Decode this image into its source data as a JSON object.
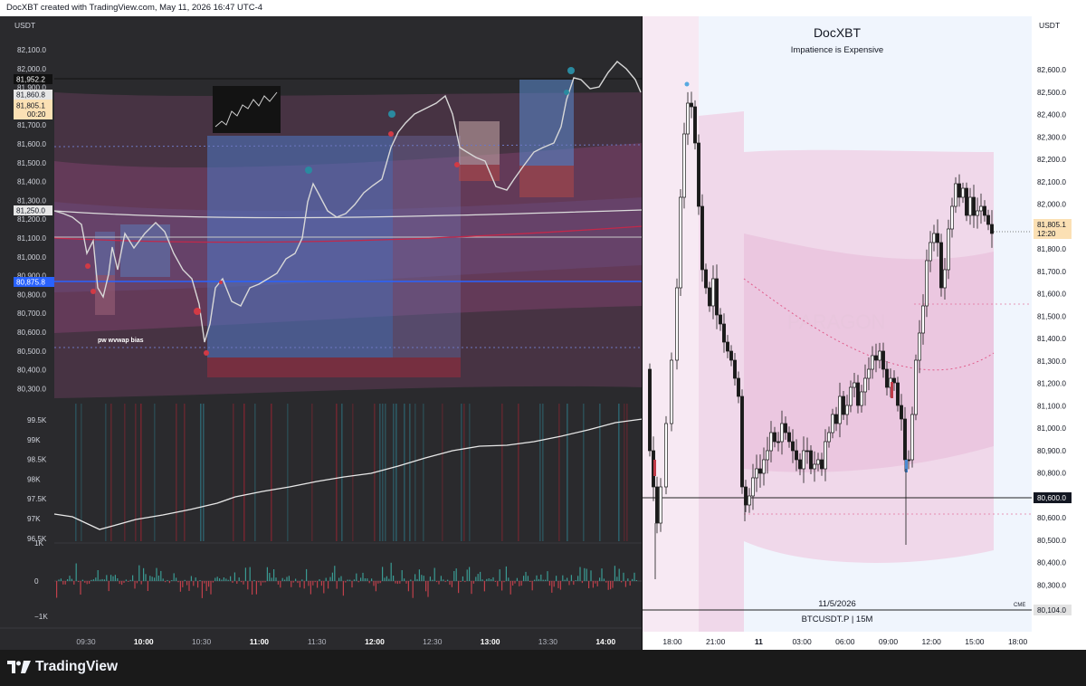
{
  "header": {
    "attribution": "DocXBT created with TradingView.com, May 11, 2026 16:47 UTC-4"
  },
  "left_chart": {
    "currency": "USDT",
    "price_axis": [
      "82,100.0",
      "82,000.0",
      "81,900.0",
      "81,800.0",
      "81,700.0",
      "81,600.0",
      "81,500.0",
      "81,400.0",
      "81,300.0",
      "81,200.0",
      "81,100.0",
      "81,000.0",
      "80,900.0",
      "80,800.0",
      "80,700.0",
      "80,600.0",
      "80,500.0",
      "80,400.0",
      "80,300.0"
    ],
    "price_labels": {
      "level_top": "81,952.2",
      "mid_box": "81,860.8",
      "last_price": "81,805.1",
      "countdown": "00:20",
      "gray_level": "81,250.0",
      "blue_level": "80,875.8"
    },
    "annotation": "pw wvwap bias",
    "indicator_axis": [
      "99.5K",
      "99K",
      "98.5K",
      "98K",
      "97.5K",
      "97K",
      "96.5K"
    ],
    "delta_axis": [
      "1K",
      "0",
      "−1K"
    ],
    "time_axis": [
      {
        "label": "09:30",
        "bold": false
      },
      {
        "label": "10:00",
        "bold": true
      },
      {
        "label": "10:30",
        "bold": false
      },
      {
        "label": "11:00",
        "bold": true
      },
      {
        "label": "11:30",
        "bold": false
      },
      {
        "label": "12:00",
        "bold": true
      },
      {
        "label": "12:30",
        "bold": false
      },
      {
        "label": "13:00",
        "bold": true
      },
      {
        "label": "13:30",
        "bold": false
      },
      {
        "label": "14:00",
        "bold": true
      }
    ]
  },
  "right_chart": {
    "title": "DocXBT",
    "subtitle": "Impatience is Expensive",
    "watermark": "PARAGON",
    "currency": "USDT",
    "price_axis": [
      "82,600.0",
      "82,500.0",
      "82,400.0",
      "82,300.0",
      "82,200.0",
      "82,100.0",
      "82,000.0",
      "81,900.0",
      "81,800.0",
      "81,700.0",
      "81,600.0",
      "81,500.0",
      "81,400.0",
      "81,300.0",
      "81,200.0",
      "81,100.0",
      "81,000.0",
      "80,900.0",
      "80,800.0",
      "80,700.0",
      "80,600.0",
      "80,500.0",
      "80,400.0",
      "80,300.0",
      "80,200.0"
    ],
    "price_labels": {
      "last_price": "81,805.1",
      "countdown": "12:20",
      "level": "80,600.0",
      "bottom": "80,104.0",
      "exchange": "CME"
    },
    "date": "11/5/2026",
    "symbol": "BTCUSDT.P | 15M",
    "time_axis": [
      {
        "label": "18:00",
        "bold": false
      },
      {
        "label": "21:00",
        "bold": false
      },
      {
        "label": "11",
        "bold": true
      },
      {
        "label": "03:00",
        "bold": false
      },
      {
        "label": "06:00",
        "bold": false
      },
      {
        "label": "09:00",
        "bold": false
      },
      {
        "label": "12:00",
        "bold": false
      },
      {
        "label": "15:00",
        "bold": false
      },
      {
        "label": "18:00",
        "bold": false
      }
    ]
  },
  "footer": {
    "brand": "TradingView",
    "logo_icon": "tradingview-logo-icon"
  },
  "colors": {
    "left_bg": "#2a2a2d",
    "right_bg": "#f0f5fd",
    "blue_level": "#2962ff",
    "last_price_tag": "#fbe0b4",
    "band_pink": "#b03a6a",
    "bear_red": "#b22833"
  }
}
